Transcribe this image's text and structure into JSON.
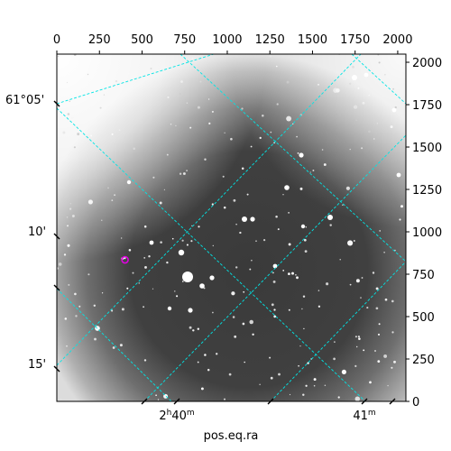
{
  "chart_data": {
    "type": "image",
    "xlabel": "pos.eq.ra",
    "pixel_x_ticks": [
      0,
      250,
      500,
      750,
      1000,
      1250,
      1500,
      1750,
      2000
    ],
    "pixel_y_ticks": [
      0,
      250,
      500,
      750,
      1000,
      1250,
      1500,
      1750,
      2000
    ],
    "pixel_range": [
      0,
      2048
    ],
    "dec_tick_labels": [
      "61°05'",
      "10'",
      "15'"
    ],
    "ra_tick_labels": [
      {
        "base": "2",
        "sup1": "h",
        "mid": "40",
        "sup2": "m"
      },
      {
        "base": "41",
        "sup1": "",
        "mid": "",
        "sup2": "m"
      }
    ],
    "grid_color": "#00e5e5",
    "marker_color": "#e000e0",
    "marker": {
      "x": 400,
      "y": 835
    },
    "image_colormap": "grayscale"
  }
}
